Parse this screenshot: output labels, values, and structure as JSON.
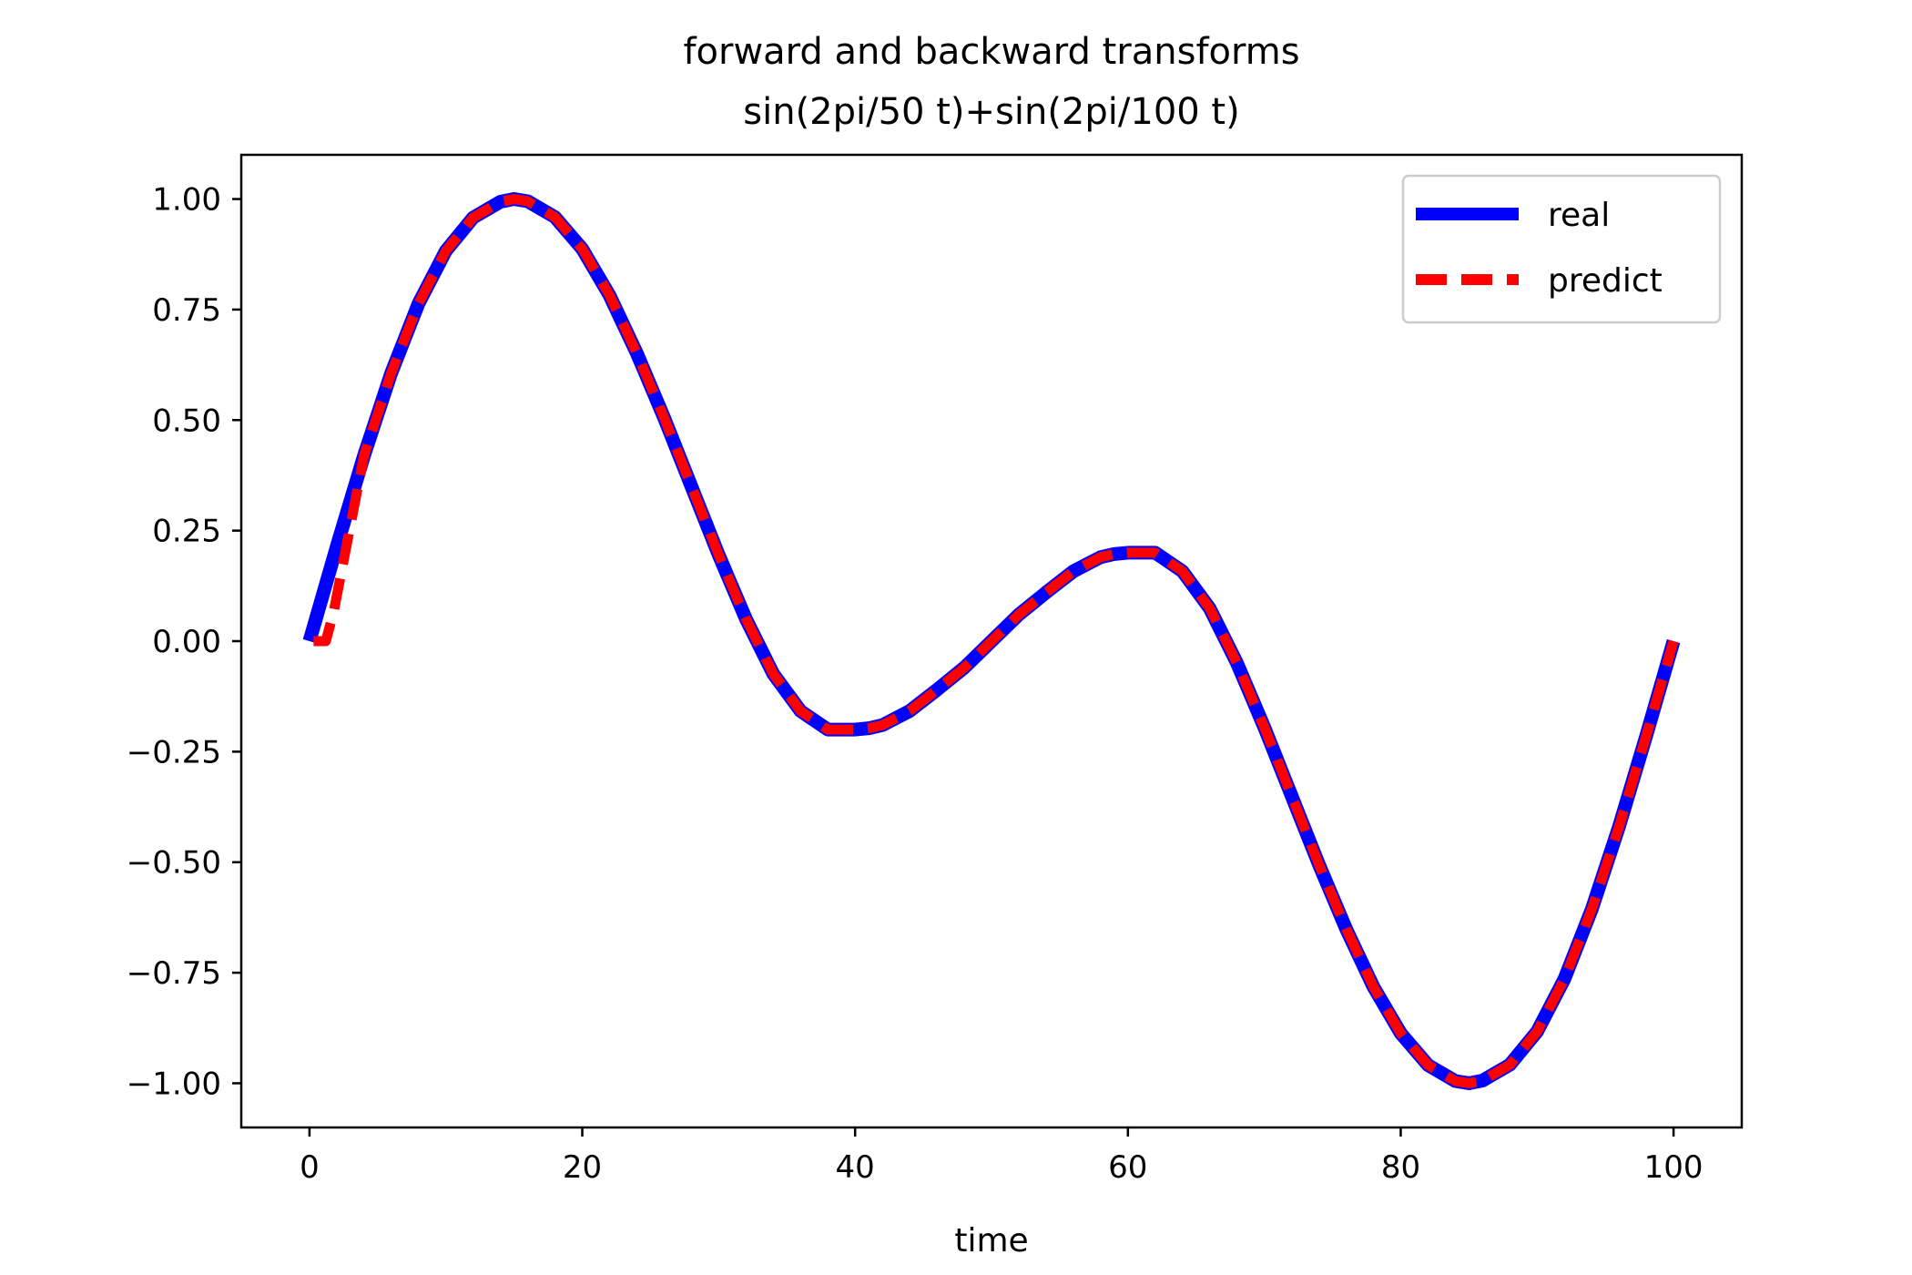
{
  "chart_data": {
    "type": "line",
    "title": [
      "forward and backward transforms",
      "sin(2pi/50 t)+sin(2pi/100 t)"
    ],
    "xlabel": "time",
    "ylabel": "",
    "xlim": [
      -5,
      105
    ],
    "ylim": [
      -1.1,
      1.1
    ],
    "xticks": [
      0,
      20,
      40,
      60,
      80,
      100
    ],
    "xtick_labels": [
      "0",
      "20",
      "40",
      "60",
      "80",
      "100"
    ],
    "yticks": [
      1.0,
      0.75,
      0.5,
      0.25,
      0.0,
      -0.25,
      -0.5,
      -0.75,
      -1.0
    ],
    "ytick_labels": [
      "1.00",
      "0.75",
      "0.50",
      "0.25",
      "0.00",
      "−0.25",
      "−0.50",
      "−0.75",
      "−1.00"
    ],
    "grid": false,
    "legend_position": "top-right",
    "series": [
      {
        "name": "real",
        "color": "#0000ff",
        "style": "solid",
        "x": [
          0,
          2,
          4,
          6,
          8,
          10,
          12,
          14,
          15,
          16,
          18,
          20,
          22,
          24,
          26,
          28,
          30,
          32,
          34,
          36,
          38,
          40,
          41,
          42,
          44,
          46,
          48,
          50,
          52,
          54,
          56,
          58,
          59,
          60,
          62,
          64,
          66,
          68,
          70,
          72,
          74,
          76,
          78,
          80,
          82,
          84,
          85,
          86,
          88,
          90,
          92,
          94,
          96,
          98,
          100
        ],
        "y": [
          0.0,
          0.214,
          0.42,
          0.607,
          0.764,
          0.883,
          0.958,
          0.994,
          1.0,
          0.995,
          0.959,
          0.887,
          0.782,
          0.651,
          0.505,
          0.35,
          0.195,
          0.05,
          -0.074,
          -0.158,
          -0.2,
          -0.2,
          -0.197,
          -0.19,
          -0.158,
          -0.11,
          -0.06,
          0.0,
          0.06,
          0.11,
          0.158,
          0.19,
          0.197,
          0.2,
          0.2,
          0.158,
          0.074,
          -0.05,
          -0.195,
          -0.35,
          -0.505,
          -0.651,
          -0.782,
          -0.887,
          -0.959,
          -0.995,
          -1.0,
          -0.994,
          -0.958,
          -0.883,
          -0.764,
          -0.607,
          -0.42,
          -0.214,
          0.0
        ]
      },
      {
        "name": "predict",
        "color": "#ff0000",
        "style": "dashed",
        "x": [
          0.3,
          1.2,
          1.8,
          2.3,
          4,
          6,
          8,
          10,
          12,
          14,
          15,
          16,
          18,
          20,
          22,
          24,
          26,
          28,
          30,
          32,
          34,
          36,
          38,
          40,
          41,
          42,
          44,
          46,
          48,
          50,
          52,
          54,
          56,
          58,
          59,
          60,
          62,
          64,
          66,
          68,
          70,
          72,
          74,
          76,
          78,
          80,
          82,
          84,
          85,
          86,
          88,
          90,
          92,
          94,
          96,
          98,
          100
        ],
        "y": [
          0.0,
          0.0,
          0.07,
          0.15,
          0.42,
          0.607,
          0.764,
          0.883,
          0.958,
          0.994,
          1.0,
          0.995,
          0.959,
          0.887,
          0.782,
          0.651,
          0.505,
          0.35,
          0.195,
          0.05,
          -0.074,
          -0.158,
          -0.2,
          -0.2,
          -0.197,
          -0.19,
          -0.158,
          -0.11,
          -0.06,
          0.0,
          0.06,
          0.11,
          0.158,
          0.19,
          0.197,
          0.2,
          0.2,
          0.158,
          0.074,
          -0.05,
          -0.195,
          -0.35,
          -0.505,
          -0.651,
          -0.782,
          -0.887,
          -0.959,
          -0.995,
          -1.0,
          -0.994,
          -0.958,
          -0.883,
          -0.764,
          -0.607,
          -0.42,
          -0.214,
          0.0
        ]
      }
    ]
  }
}
